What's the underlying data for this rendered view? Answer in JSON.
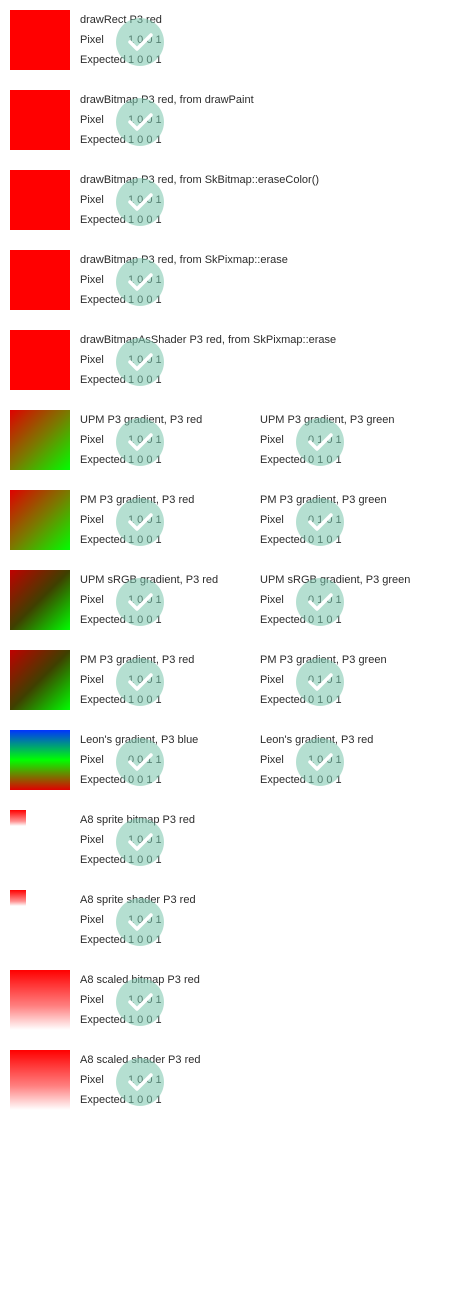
{
  "labels": {
    "pixel": "Pixel",
    "expected": "Expected"
  },
  "icons": {
    "status": "check-icon"
  },
  "colors": {
    "check_circle": "#78c4ac"
  },
  "tests": [
    {
      "title": "drawRect P3 red",
      "pixel": "1 0 0 1",
      "expected": "1 0 0 1",
      "swatch": "solid-red"
    },
    {
      "title": "drawBitmap P3 red, from drawPaint",
      "pixel": "1 0 0 1",
      "expected": "1 0 0 1",
      "swatch": "solid-red"
    },
    {
      "title": "drawBitmap P3 red, from SkBitmap::eraseColor()",
      "pixel": "1 0 0 1",
      "expected": "1 0 0 1",
      "swatch": "solid-red"
    },
    {
      "title": "drawBitmap P3 red, from SkPixmap::erase",
      "pixel": "1 0 0 1",
      "expected": "1 0 0 1",
      "swatch": "solid-red"
    },
    {
      "title": "drawBitmapAsShader P3 red, from SkPixmap::erase",
      "pixel": "1 0 0 1",
      "expected": "1 0 0 1",
      "swatch": "solid-red"
    },
    {
      "title": "UPM P3 gradient, P3 red",
      "pixel": "1 0 0 1",
      "expected": "1 0 0 1",
      "swatch": "grad-rg-light"
    },
    {
      "title": "UPM P3 gradient, P3 green",
      "pixel": "0 1 0 1",
      "expected": "0 1 0 1",
      "swatch": "none"
    },
    {
      "title": "PM P3 gradient, P3 red",
      "pixel": "1 0 0 1",
      "expected": "1 0 0 1",
      "swatch": "grad-rg-light"
    },
    {
      "title": "PM P3 gradient, P3 green",
      "pixel": "0 1 0 1",
      "expected": "0 1 0 1",
      "swatch": "none"
    },
    {
      "title": "UPM sRGB gradient, P3 red",
      "pixel": "1 0 0 1",
      "expected": "1 0 0 1",
      "swatch": "grad-rg-dark"
    },
    {
      "title": "UPM sRGB gradient, P3 green",
      "pixel": "0 1 0 1",
      "expected": "0 1 0 1",
      "swatch": "none"
    },
    {
      "title": "PM P3 gradient, P3 red",
      "pixel": "1 0 0 1",
      "expected": "1 0 0 1",
      "swatch": "grad-rg-dark"
    },
    {
      "title": "PM P3 gradient, P3 green",
      "pixel": "0 1 0 1",
      "expected": "0 1 0 1",
      "swatch": "none"
    },
    {
      "title": "Leon's gradient, P3 blue",
      "pixel": "0 0 1 1",
      "expected": "0 0 1 1",
      "swatch": "grad-bgr"
    },
    {
      "title": "Leon's gradient, P3 red",
      "pixel": "1 0 0 1",
      "expected": "1 0 0 1",
      "swatch": "none"
    },
    {
      "title": "A8 sprite bitmap P3 red",
      "pixel": "1 0 0 1",
      "expected": "1 0 0 1",
      "swatch": "small-red-fade"
    },
    {
      "title": "A8 sprite shader P3 red",
      "pixel": "1 0 0 1",
      "expected": "1 0 0 1",
      "swatch": "small-red-fade"
    },
    {
      "title": "A8 scaled bitmap P3 red",
      "pixel": "1 0 0 1",
      "expected": "1 0 0 1",
      "swatch": "red-fade"
    },
    {
      "title": "A8 scaled shader P3 red",
      "pixel": "1 0 0 1",
      "expected": "1 0 0 1",
      "swatch": "red-fade"
    }
  ]
}
